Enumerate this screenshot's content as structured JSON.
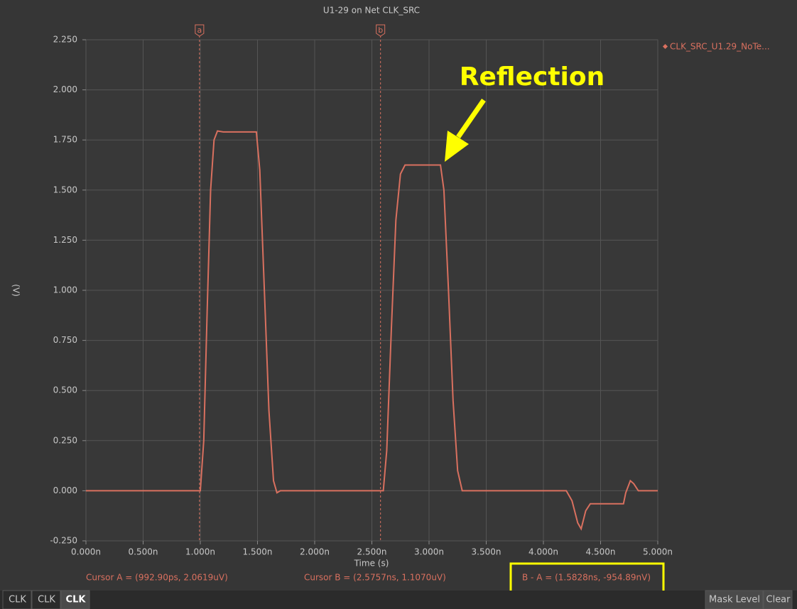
{
  "chart_data": {
    "type": "line",
    "title": "U1-29 on Net CLK_SRC",
    "x_label": "Time (s)",
    "y_label": "(V)",
    "x": [
      0,
      0.99,
      1.0,
      1.03,
      1.06,
      1.09,
      1.12,
      1.15,
      1.2,
      1.49,
      1.52,
      1.56,
      1.6,
      1.64,
      1.67,
      1.7,
      2.6,
      2.63,
      2.67,
      2.71,
      2.75,
      2.79,
      3.1,
      3.13,
      3.17,
      3.21,
      3.25,
      3.29,
      4.2,
      4.25,
      4.3,
      4.33,
      4.37,
      4.41,
      4.7,
      4.72,
      4.76,
      4.79,
      4.83,
      5.0
    ],
    "series": [
      {
        "name": "CLK_SRC_U1.29_NoTe...",
        "color": "#d9705f",
        "values": [
          0,
          0,
          0,
          0.25,
          0.9,
          1.5,
          1.75,
          1.795,
          1.79,
          1.79,
          1.6,
          1.0,
          0.4,
          0.05,
          -0.01,
          0,
          0,
          0.2,
          0.8,
          1.35,
          1.58,
          1.625,
          1.625,
          1.5,
          1.0,
          0.45,
          0.1,
          0,
          0,
          -0.05,
          -0.16,
          -0.19,
          -0.1,
          -0.065,
          -0.065,
          -0.01,
          0.05,
          0.035,
          0,
          0
        ]
      }
    ],
    "xlim": [
      0,
      5
    ],
    "ylim": [
      -0.25,
      2.25
    ],
    "xticks": [
      {
        "value": 0,
        "label": "0.000n"
      },
      {
        "value": 0.5,
        "label": "0.500n"
      },
      {
        "value": 1,
        "label": "1.000n"
      },
      {
        "value": 1.5,
        "label": "1.500n"
      },
      {
        "value": 2,
        "label": "2.000n"
      },
      {
        "value": 2.5,
        "label": "2.500n"
      },
      {
        "value": 3,
        "label": "3.000n"
      },
      {
        "value": 3.5,
        "label": "3.500n"
      },
      {
        "value": 4,
        "label": "4.000n"
      },
      {
        "value": 4.5,
        "label": "4.500n"
      },
      {
        "value": 5,
        "label": "5.000n"
      }
    ],
    "yticks": [
      {
        "value": -0.25,
        "label": "-0.250"
      },
      {
        "value": 0,
        "label": "0.000"
      },
      {
        "value": 0.25,
        "label": "0.250"
      },
      {
        "value": 0.5,
        "label": "0.500"
      },
      {
        "value": 0.75,
        "label": "0.750"
      },
      {
        "value": 1,
        "label": "1.000"
      },
      {
        "value": 1.25,
        "label": "1.250"
      },
      {
        "value": 1.5,
        "label": "1.500"
      },
      {
        "value": 1.75,
        "label": "1.750"
      },
      {
        "value": 2,
        "label": "2.000"
      },
      {
        "value": 2.25,
        "label": "2.250"
      }
    ],
    "grid": true,
    "cursors": [
      {
        "label": "a",
        "x": 0.9929
      },
      {
        "label": "b",
        "x": 2.5757
      }
    ],
    "cursor_readouts": [
      "Cursor A = (992.90ps, 2.0619uV)",
      "Cursor B = (2.5757ns, 1.1070uV)",
      "B - A = (1.5828ns, -954.89nV)"
    ],
    "annotation": "Reflection"
  },
  "tabs": [
    "CLK",
    "CLK",
    "CLK"
  ],
  "buttons": [
    "Mask Level",
    "Clear"
  ]
}
